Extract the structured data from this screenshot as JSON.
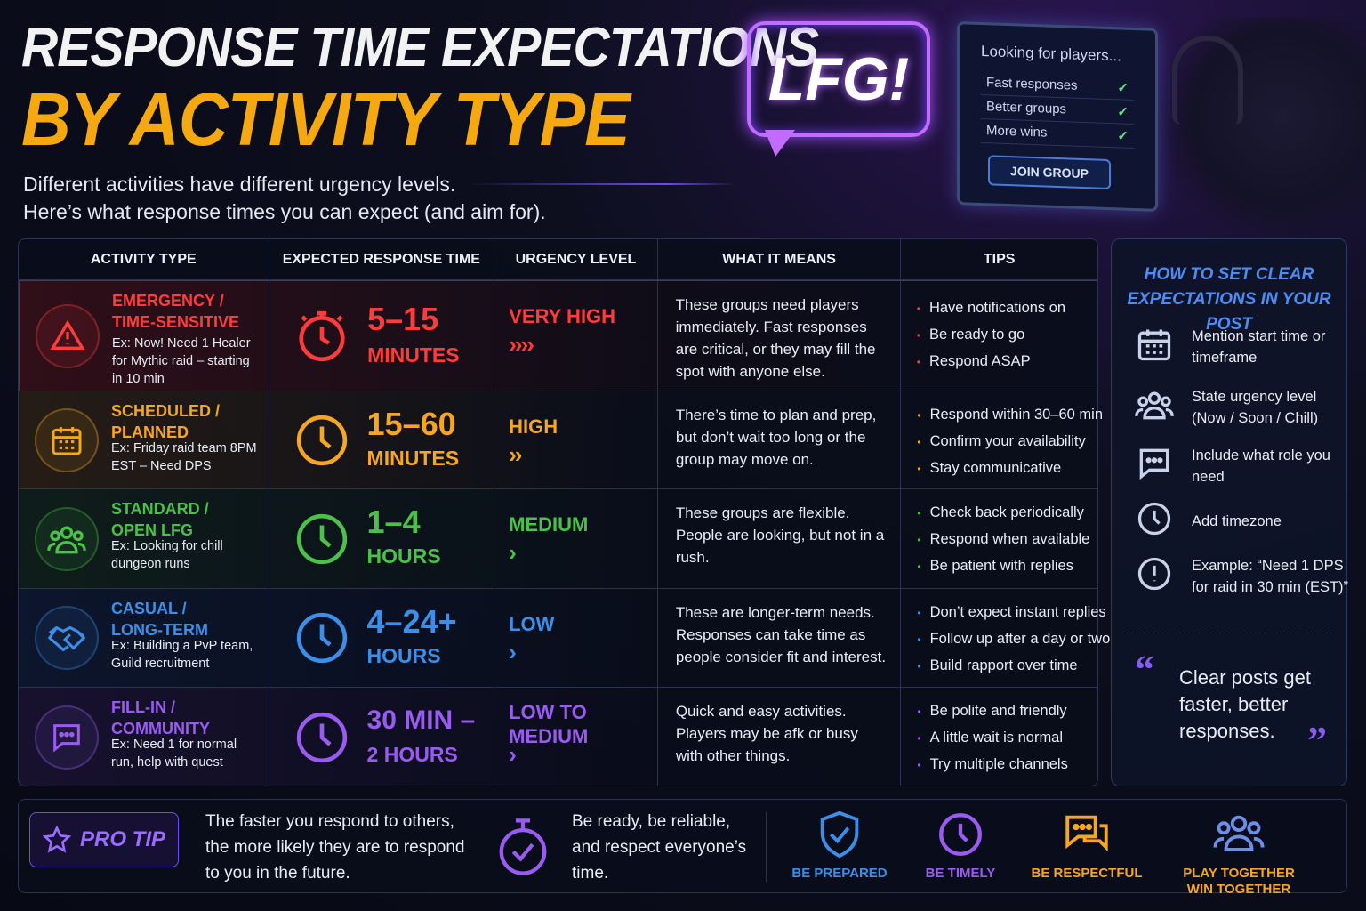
{
  "header": {
    "title_line1": "RESPONSE TIME EXPECTATIONS",
    "title_line2": "BY ACTIVITY TYPE",
    "subtitle_line1": "Different activities have different urgency levels.",
    "subtitle_line2": "Here’s what response times you can expect (and aim for)."
  },
  "hero": {
    "bubble_text": "LFG!",
    "monitor_title": "Looking for players...",
    "monitor_items": [
      "Fast responses",
      "Better groups",
      "More wins"
    ],
    "join_button": "JOIN GROUP"
  },
  "table": {
    "headers": [
      "ACTIVITY TYPE",
      "EXPECTED RESPONSE TIME",
      "URGENCY LEVEL",
      "WHAT IT MEANS",
      "TIPS"
    ],
    "rows": [
      {
        "name_line1": "EMERGENCY /",
        "name_line2": "TIME-SENSITIVE",
        "example": "Ex: Now! Need 1 Healer for Mythic raid – starting in 10 min",
        "time_line1": "5–15",
        "time_line2": "MINUTES",
        "urgency_line1": "VERY HIGH",
        "urgency_line2": "",
        "chevrons": "››››",
        "meaning": "These groups need players immediately. Fast responses are critical, or they may fill the spot with anyone else.",
        "tips": [
          "Have notifications on",
          "Be ready to go",
          "Respond ASAP"
        ],
        "color": "#ff3b3b",
        "icon": "warning-icon"
      },
      {
        "name_line1": "SCHEDULED /",
        "name_line2": "PLANNED",
        "example": "Ex: Friday raid team 8PM EST – Need DPS",
        "time_line1": "15–60",
        "time_line2": "MINUTES",
        "urgency_line1": "HIGH",
        "urgency_line2": "",
        "chevrons": "››",
        "meaning": "There’s time to plan and prep, but don’t wait too long or the group may move on.",
        "tips": [
          "Respond within 30–60 min",
          "Confirm your availability",
          "Stay communicative"
        ],
        "color": "#f5a623",
        "icon": "calendar-icon"
      },
      {
        "name_line1": "STANDARD /",
        "name_line2": "OPEN LFG",
        "example": "Ex: Looking for chill dungeon runs",
        "time_line1": "1–4",
        "time_line2": "HOURS",
        "urgency_line1": "MEDIUM",
        "urgency_line2": "",
        "chevrons": "›",
        "meaning": "These groups are flexible. People are looking, but not in a rush.",
        "tips": [
          "Check back periodically",
          "Respond when available",
          "Be patient with replies"
        ],
        "color": "#4cc04a",
        "icon": "group-icon"
      },
      {
        "name_line1": "CASUAL /",
        "name_line2": "LONG-TERM",
        "example": "Ex: Building a PvP team, Guild recruitment",
        "time_line1": "4–24+",
        "time_line2": "HOURS",
        "urgency_line1": "LOW",
        "urgency_line2": "",
        "chevrons": "›",
        "meaning": "These are longer-term needs. Responses can take time as people consider fit and interest.",
        "tips": [
          "Don’t expect instant replies",
          "Follow up after a day or two",
          "Build rapport over time"
        ],
        "color": "#3b8fe8",
        "icon": "handshake-icon"
      },
      {
        "name_line1": "FILL-IN /",
        "name_line2": "COMMUNITY",
        "example": "Ex: Need 1 for normal run, help with quest",
        "time_line1": "30 MIN –",
        "time_line2": "2 HOURS",
        "urgency_line1": "LOW TO",
        "urgency_line2": "MEDIUM",
        "chevrons": "›",
        "meaning": "Quick and easy activities. Players may be afk or busy with other things.",
        "tips": [
          "Be polite and friendly",
          "A little wait is normal",
          "Try multiple channels"
        ],
        "color": "#9a5cf0",
        "icon": "chat-bubble-icon"
      }
    ]
  },
  "sidebar": {
    "title_line1": "HOW TO SET CLEAR",
    "title_line2": "EXPECTATIONS IN YOUR POST",
    "items": [
      {
        "text": "Mention start time or timeframe",
        "icon": "calendar-icon"
      },
      {
        "text": "State urgency level (Now / Soon / Chill)",
        "icon": "group-icon"
      },
      {
        "text": "Include what role you need",
        "icon": "chat-bubble-icon"
      },
      {
        "text": "Add timezone",
        "icon": "clock-icon"
      },
      {
        "text": "Example: “Need 1 DPS for raid in 30 min (EST)”",
        "icon": "alert-icon"
      }
    ],
    "quote": "Clear posts get faster, better responses."
  },
  "footer": {
    "protip_label": "PRO TIP",
    "tip1": "The faster you respond to others, the more likely they are to respond to you in the future.",
    "tip2": "Be ready, be reliable, and respect everyone’s time.",
    "badges": [
      {
        "label": "BE PREPARED",
        "color": "#3b8fe8",
        "icon": "shield-check-icon"
      },
      {
        "label": "BE TIMELY",
        "color": "#9a5cf0",
        "icon": "clock-icon"
      },
      {
        "label": "BE RESPECTFUL",
        "color": "#f5a623",
        "icon": "chat-bubbles-icon"
      },
      {
        "label": "PLAY TOGETHER WIN TOGETHER",
        "color": "#f5a623",
        "icon": "team-icon"
      }
    ]
  }
}
